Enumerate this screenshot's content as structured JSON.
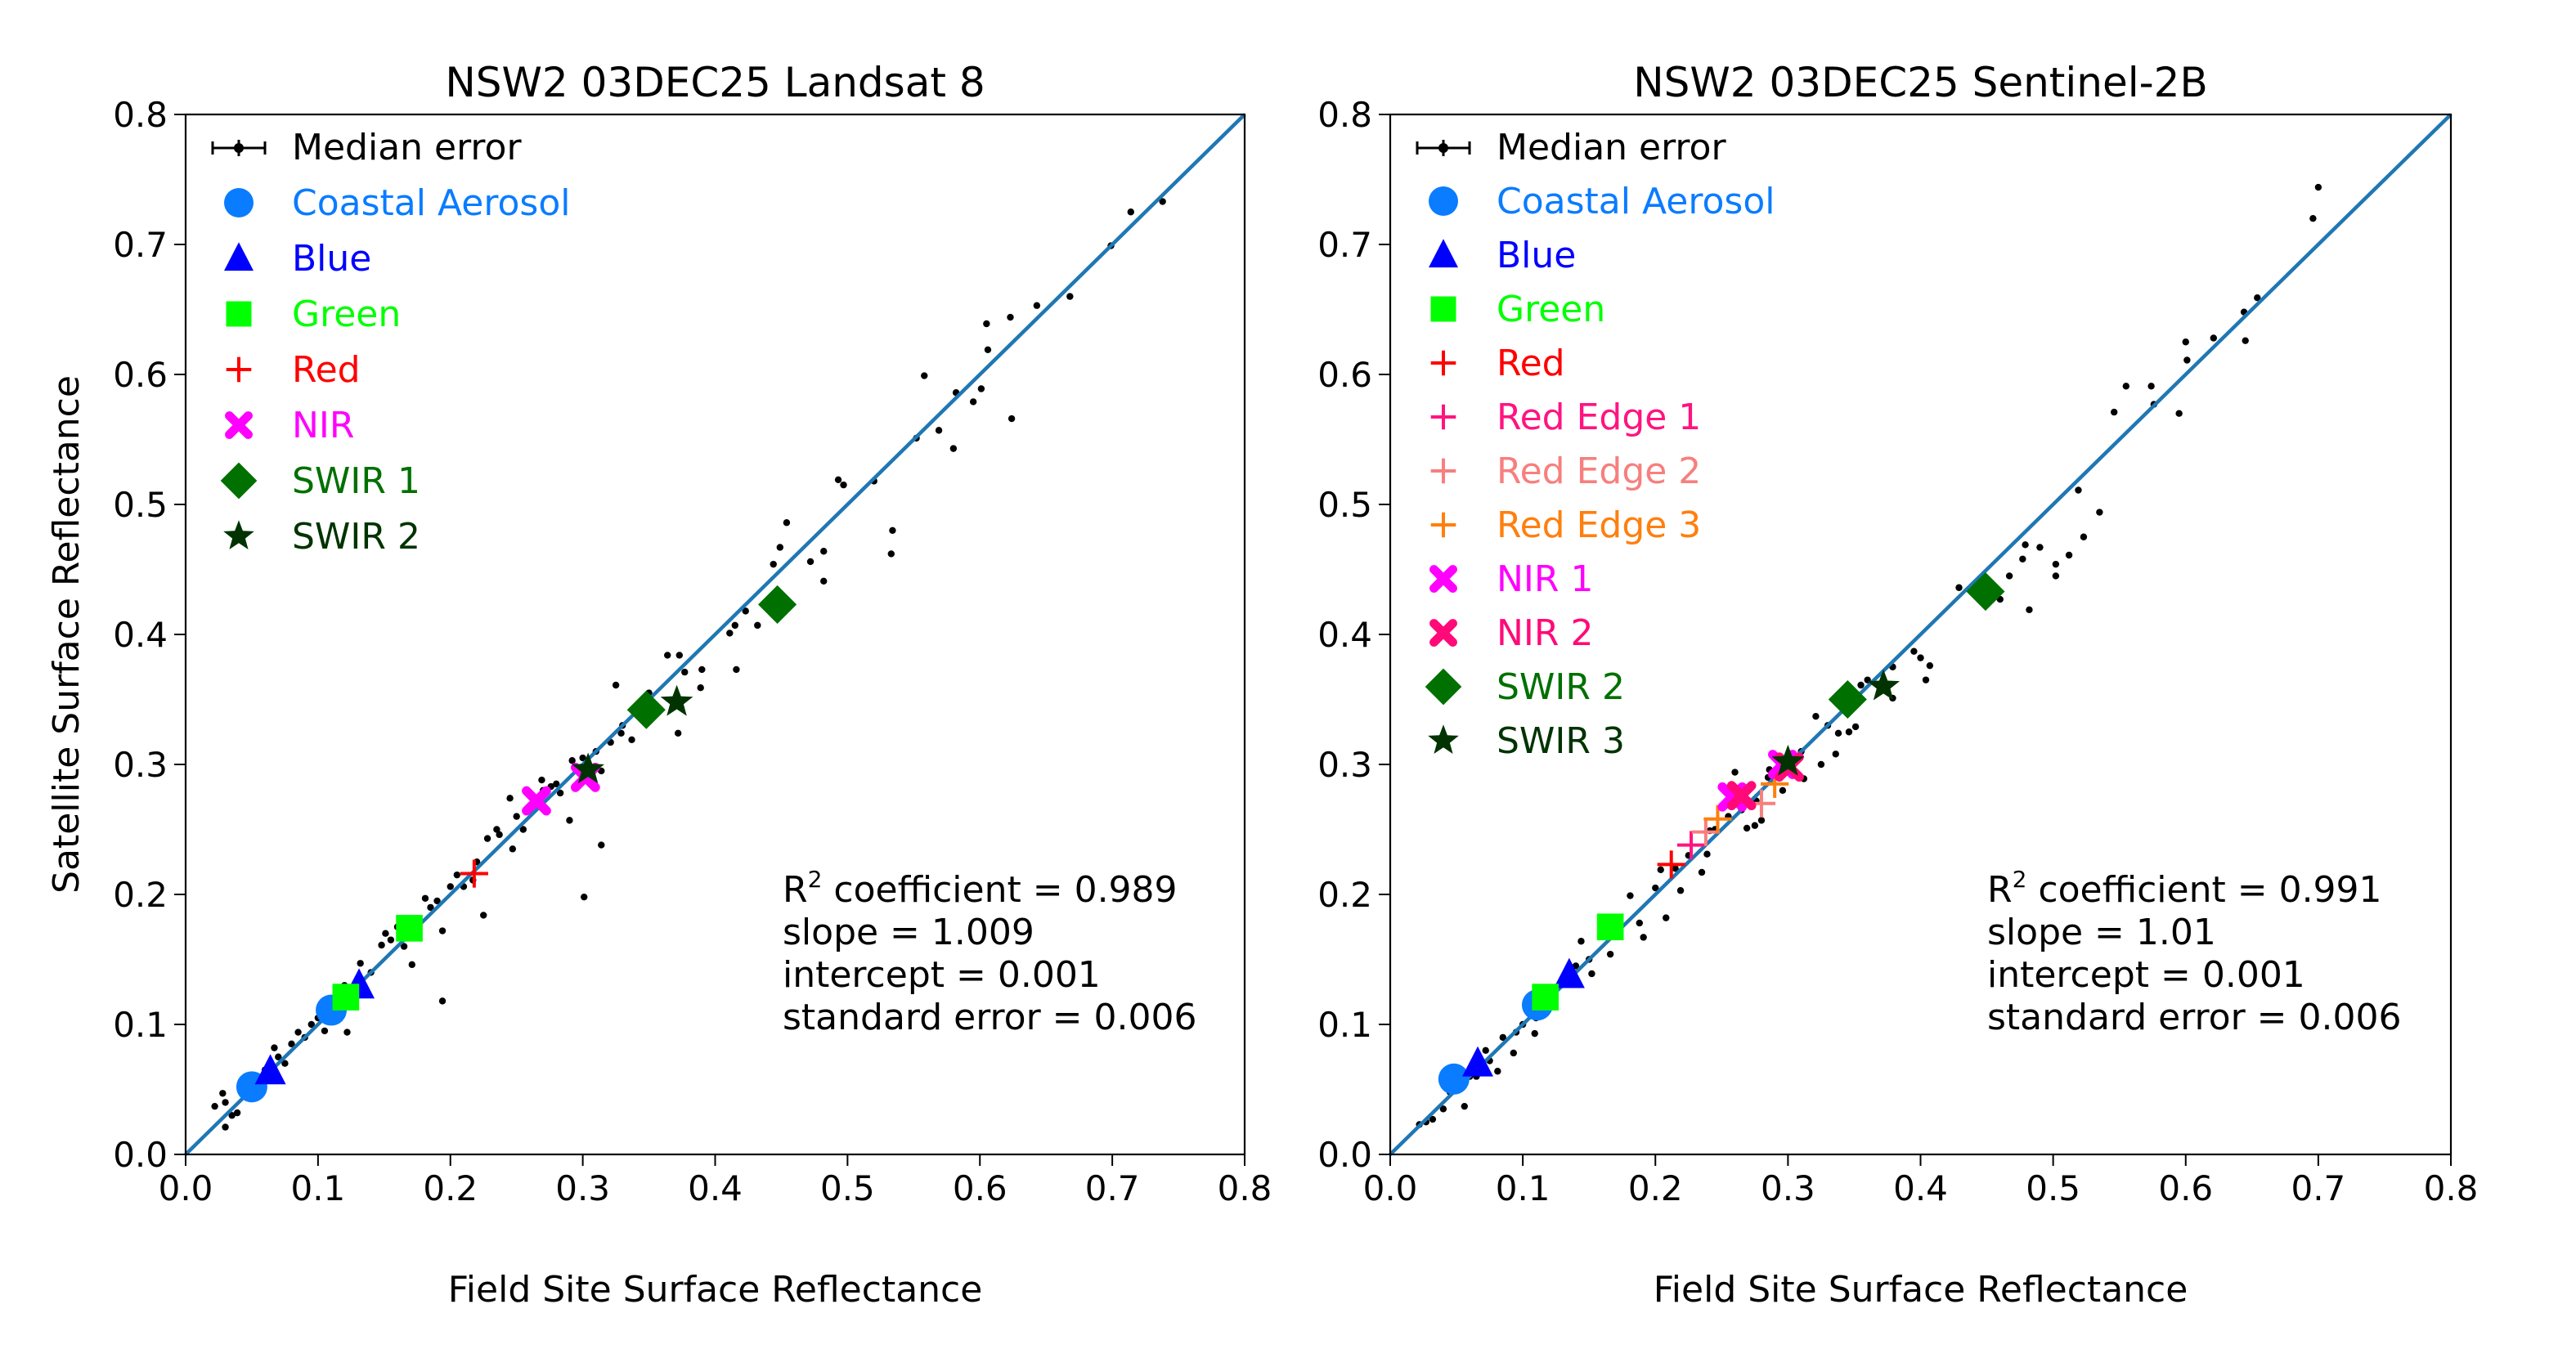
{
  "chart_data": [
    {
      "type": "scatter",
      "title": "NSW2 03DEC25 Landsat 8",
      "xlabel": "Field Site Surface Reflectance",
      "ylabel": "Satellite Surface Reflectance",
      "xlim": [
        0,
        0.8
      ],
      "ylim": [
        0,
        0.8
      ],
      "xticks": [
        "0.0",
        "0.1",
        "0.2",
        "0.3",
        "0.4",
        "0.5",
        "0.6",
        "0.7",
        "0.8"
      ],
      "yticks": [
        "0.0",
        "0.1",
        "0.2",
        "0.3",
        "0.4",
        "0.5",
        "0.6",
        "0.7",
        "0.8"
      ],
      "grid": false,
      "one_to_one_line": {
        "color": "#1f77b4"
      },
      "legend_location": "upper-left",
      "legend_errorbar_label": "Median error",
      "series": [
        {
          "name": "Coastal Aerosol",
          "color": "#0a7cff",
          "marker": "circle",
          "points": [
            [
              0.05,
              0.052
            ],
            [
              0.11,
              0.111
            ]
          ]
        },
        {
          "name": "Blue",
          "color": "#0000ff",
          "marker": "triangle",
          "points": [
            [
              0.064,
              0.064
            ],
            [
              0.131,
              0.13
            ]
          ]
        },
        {
          "name": "Green",
          "color": "#00ff00",
          "marker": "square",
          "points": [
            [
              0.121,
              0.121
            ],
            [
              0.169,
              0.174
            ]
          ]
        },
        {
          "name": "Red",
          "color": "#ff0000",
          "marker": "plus",
          "points": [
            [
              0.218,
              0.216
            ]
          ]
        },
        {
          "name": "NIR",
          "color": "#ff00ff",
          "marker": "x-filled",
          "points": [
            [
              0.265,
              0.272
            ],
            [
              0.302,
              0.29
            ]
          ]
        },
        {
          "name": "SWIR 1",
          "color": "#007000",
          "marker": "diamond",
          "points": [
            [
              0.348,
              0.342
            ],
            [
              0.447,
              0.423
            ]
          ]
        },
        {
          "name": "SWIR 2",
          "color": "#003300",
          "marker": "star",
          "points": [
            [
              0.304,
              0.296
            ],
            [
              0.371,
              0.348
            ]
          ]
        }
      ],
      "scatter_points": [
        [
          0.738,
          0.733
        ],
        [
          0.714,
          0.725
        ],
        [
          0.699,
          0.699
        ],
        [
          0.668,
          0.66
        ],
        [
          0.643,
          0.653
        ],
        [
          0.623,
          0.644
        ],
        [
          0.605,
          0.639
        ],
        [
          0.606,
          0.619
        ],
        [
          0.558,
          0.599
        ],
        [
          0.582,
          0.586
        ],
        [
          0.601,
          0.589
        ],
        [
          0.595,
          0.579
        ],
        [
          0.624,
          0.566
        ],
        [
          0.569,
          0.557
        ],
        [
          0.552,
          0.551
        ],
        [
          0.58,
          0.543
        ],
        [
          0.493,
          0.519
        ],
        [
          0.497,
          0.515
        ],
        [
          0.52,
          0.518
        ],
        [
          0.454,
          0.486
        ],
        [
          0.534,
          0.48
        ],
        [
          0.533,
          0.462
        ],
        [
          0.449,
          0.467
        ],
        [
          0.444,
          0.454
        ],
        [
          0.472,
          0.456
        ],
        [
          0.482,
          0.464
        ],
        [
          0.482,
          0.441
        ],
        [
          0.415,
          0.407
        ],
        [
          0.411,
          0.401
        ],
        [
          0.423,
          0.418
        ],
        [
          0.416,
          0.373
        ],
        [
          0.432,
          0.407
        ],
        [
          0.364,
          0.384
        ],
        [
          0.373,
          0.384
        ],
        [
          0.377,
          0.371
        ],
        [
          0.39,
          0.373
        ],
        [
          0.389,
          0.359
        ],
        [
          0.372,
          0.324
        ],
        [
          0.325,
          0.361
        ],
        [
          0.337,
          0.319
        ],
        [
          0.329,
          0.324
        ],
        [
          0.321,
          0.317
        ],
        [
          0.314,
          0.295
        ],
        [
          0.292,
          0.303
        ],
        [
          0.283,
          0.278
        ],
        [
          0.245,
          0.274
        ],
        [
          0.269,
          0.288
        ],
        [
          0.276,
          0.283
        ],
        [
          0.29,
          0.257
        ],
        [
          0.228,
          0.243
        ],
        [
          0.237,
          0.246
        ],
        [
          0.247,
          0.235
        ],
        [
          0.314,
          0.238
        ],
        [
          0.301,
          0.198
        ],
        [
          0.225,
          0.184
        ],
        [
          0.217,
          0.211
        ],
        [
          0.21,
          0.206
        ],
        [
          0.2,
          0.206
        ],
        [
          0.181,
          0.197
        ],
        [
          0.194,
          0.172
        ],
        [
          0.171,
          0.146
        ],
        [
          0.151,
          0.17
        ],
        [
          0.148,
          0.161
        ],
        [
          0.132,
          0.147
        ],
        [
          0.122,
          0.094
        ],
        [
          0.194,
          0.118
        ],
        [
          0.085,
          0.094
        ],
        [
          0.067,
          0.082
        ],
        [
          0.042,
          0.055
        ],
        [
          0.022,
          0.037
        ],
        [
          0.03,
          0.021
        ],
        [
          0.039,
          0.032
        ],
        [
          0.028,
          0.047
        ],
        [
          0.03,
          0.04
        ],
        [
          0.035,
          0.03
        ],
        [
          0.045,
          0.05
        ],
        [
          0.06,
          0.065
        ],
        [
          0.07,
          0.075
        ],
        [
          0.08,
          0.085
        ],
        [
          0.09,
          0.09
        ],
        [
          0.095,
          0.1
        ],
        [
          0.1,
          0.105
        ],
        [
          0.12,
          0.13
        ],
        [
          0.14,
          0.14
        ],
        [
          0.155,
          0.165
        ],
        [
          0.16,
          0.175
        ],
        [
          0.175,
          0.18
        ],
        [
          0.185,
          0.19
        ],
        [
          0.19,
          0.195
        ],
        [
          0.205,
          0.215
        ],
        [
          0.22,
          0.225
        ],
        [
          0.235,
          0.25
        ],
        [
          0.25,
          0.26
        ],
        [
          0.26,
          0.265
        ],
        [
          0.27,
          0.28
        ],
        [
          0.28,
          0.285
        ],
        [
          0.3,
          0.305
        ],
        [
          0.31,
          0.31
        ],
        [
          0.33,
          0.33
        ],
        [
          0.35,
          0.355
        ],
        [
          0.055,
          0.045
        ],
        [
          0.075,
          0.07
        ],
        [
          0.105,
          0.095
        ],
        [
          0.165,
          0.16
        ],
        [
          0.255,
          0.25
        ]
      ],
      "stats": {
        "r2_label": "R",
        "r2_sup": "2",
        "r2_text": " coefficient = 0.989",
        "slope": "slope = 1.009",
        "intercept": "intercept = 0.001",
        "std_error": "standard error = 0.006"
      }
    },
    {
      "type": "scatter",
      "title": "NSW2 03DEC25 Sentinel-2B",
      "xlabel": "Field Site Surface Reflectance",
      "ylabel": "",
      "xlim": [
        0,
        0.8
      ],
      "ylim": [
        0,
        0.8
      ],
      "xticks": [
        "0.0",
        "0.1",
        "0.2",
        "0.3",
        "0.4",
        "0.5",
        "0.6",
        "0.7",
        "0.8"
      ],
      "yticks": [
        "0.0",
        "0.1",
        "0.2",
        "0.3",
        "0.4",
        "0.5",
        "0.6",
        "0.7",
        "0.8"
      ],
      "grid": false,
      "one_to_one_line": {
        "color": "#1f77b4"
      },
      "legend_location": "upper-left",
      "legend_errorbar_label": "Median error",
      "series": [
        {
          "name": "Coastal Aerosol",
          "color": "#0a7cff",
          "marker": "circle",
          "points": [
            [
              0.048,
              0.058
            ],
            [
              0.111,
              0.115
            ]
          ]
        },
        {
          "name": "Blue",
          "color": "#0000ff",
          "marker": "triangle",
          "points": [
            [
              0.066,
              0.07
            ],
            [
              0.135,
              0.138
            ]
          ]
        },
        {
          "name": "Green",
          "color": "#00ff00",
          "marker": "square",
          "points": [
            [
              0.117,
              0.121
            ],
            [
              0.166,
              0.175
            ]
          ]
        },
        {
          "name": "Red",
          "color": "#ff0000",
          "marker": "plus",
          "points": [
            [
              0.212,
              0.223
            ]
          ]
        },
        {
          "name": "Red Edge 1",
          "color": "#ff1480",
          "marker": "plus",
          "points": [
            [
              0.227,
              0.238
            ]
          ]
        },
        {
          "name": "Red Edge 2",
          "color": "#f77f7f",
          "marker": "plus",
          "points": [
            [
              0.238,
              0.248
            ],
            [
              0.28,
              0.27
            ]
          ]
        },
        {
          "name": "Red Edge 3",
          "color": "#ff7f0e",
          "marker": "plus",
          "points": [
            [
              0.247,
              0.258
            ],
            [
              0.29,
              0.285
            ]
          ]
        },
        {
          "name": "NIR 1",
          "color": "#ff00ff",
          "marker": "x-filled",
          "points": [
            [
              0.258,
              0.275
            ],
            [
              0.296,
              0.3
            ]
          ]
        },
        {
          "name": "NIR 2",
          "color": "#ff0a78",
          "marker": "x-filled",
          "points": [
            [
              0.265,
              0.276
            ],
            [
              0.301,
              0.298
            ]
          ]
        },
        {
          "name": "SWIR 2",
          "color": "#007000",
          "marker": "diamond",
          "points": [
            [
              0.345,
              0.35
            ],
            [
              0.449,
              0.433
            ]
          ]
        },
        {
          "name": "SWIR 3",
          "color": "#003300",
          "marker": "star",
          "points": [
            [
              0.3,
              0.302
            ],
            [
              0.372,
              0.36
            ]
          ]
        }
      ],
      "scatter_points": [
        [
          0.7,
          0.744
        ],
        [
          0.696,
          0.72
        ],
        [
          0.654,
          0.659
        ],
        [
          0.644,
          0.648
        ],
        [
          0.645,
          0.626
        ],
        [
          0.621,
          0.628
        ],
        [
          0.6,
          0.625
        ],
        [
          0.601,
          0.611
        ],
        [
          0.555,
          0.591
        ],
        [
          0.574,
          0.591
        ],
        [
          0.576,
          0.577
        ],
        [
          0.595,
          0.57
        ],
        [
          0.546,
          0.571
        ],
        [
          0.519,
          0.511
        ],
        [
          0.535,
          0.494
        ],
        [
          0.523,
          0.475
        ],
        [
          0.512,
          0.461
        ],
        [
          0.502,
          0.454
        ],
        [
          0.502,
          0.445
        ],
        [
          0.49,
          0.467
        ],
        [
          0.479,
          0.469
        ],
        [
          0.477,
          0.458
        ],
        [
          0.467,
          0.445
        ],
        [
          0.482,
          0.419
        ],
        [
          0.46,
          0.427
        ],
        [
          0.429,
          0.436
        ],
        [
          0.395,
          0.387
        ],
        [
          0.4,
          0.382
        ],
        [
          0.407,
          0.376
        ],
        [
          0.404,
          0.365
        ],
        [
          0.379,
          0.375
        ],
        [
          0.379,
          0.351
        ],
        [
          0.355,
          0.361
        ],
        [
          0.321,
          0.337
        ],
        [
          0.351,
          0.329
        ],
        [
          0.346,
          0.325
        ],
        [
          0.338,
          0.324
        ],
        [
          0.336,
          0.308
        ],
        [
          0.325,
          0.3
        ],
        [
          0.312,
          0.289
        ],
        [
          0.296,
          0.28
        ],
        [
          0.286,
          0.296
        ],
        [
          0.276,
          0.272
        ],
        [
          0.26,
          0.294
        ],
        [
          0.269,
          0.251
        ],
        [
          0.275,
          0.253
        ],
        [
          0.28,
          0.257
        ],
        [
          0.239,
          0.231
        ],
        [
          0.241,
          0.249
        ],
        [
          0.235,
          0.217
        ],
        [
          0.219,
          0.203
        ],
        [
          0.208,
          0.182
        ],
        [
          0.204,
          0.219
        ],
        [
          0.181,
          0.199
        ],
        [
          0.188,
          0.178
        ],
        [
          0.191,
          0.167
        ],
        [
          0.166,
          0.154
        ],
        [
          0.144,
          0.164
        ],
        [
          0.152,
          0.139
        ],
        [
          0.109,
          0.093
        ],
        [
          0.095,
          0.094
        ],
        [
          0.093,
          0.078
        ],
        [
          0.072,
          0.08
        ],
        [
          0.081,
          0.064
        ],
        [
          0.056,
          0.037
        ],
        [
          0.04,
          0.035
        ],
        [
          0.032,
          0.027
        ],
        [
          0.022,
          0.023
        ],
        [
          0.027,
          0.025
        ],
        [
          0.06,
          0.06
        ],
        [
          0.075,
          0.072
        ],
        [
          0.085,
          0.09
        ],
        [
          0.1,
          0.1
        ],
        [
          0.12,
          0.125
        ],
        [
          0.13,
          0.135
        ],
        [
          0.14,
          0.145
        ],
        [
          0.15,
          0.15
        ],
        [
          0.17,
          0.17
        ],
        [
          0.2,
          0.205
        ],
        [
          0.215,
          0.22
        ],
        [
          0.225,
          0.23
        ],
        [
          0.245,
          0.25
        ],
        [
          0.255,
          0.26
        ],
        [
          0.265,
          0.265
        ],
        [
          0.285,
          0.29
        ],
        [
          0.3,
          0.305
        ],
        [
          0.31,
          0.31
        ],
        [
          0.33,
          0.33
        ],
        [
          0.34,
          0.345
        ],
        [
          0.36,
          0.365
        ],
        [
          0.045,
          0.048
        ],
        [
          0.065,
          0.06
        ],
        [
          0.11,
          0.105
        ]
      ],
      "stats": {
        "r2_label": "R",
        "r2_sup": "2",
        "r2_text": " coefficient = 0.991",
        "slope": "slope = 1.01",
        "intercept": "intercept = 0.001",
        "std_error": "standard error = 0.006"
      }
    }
  ]
}
